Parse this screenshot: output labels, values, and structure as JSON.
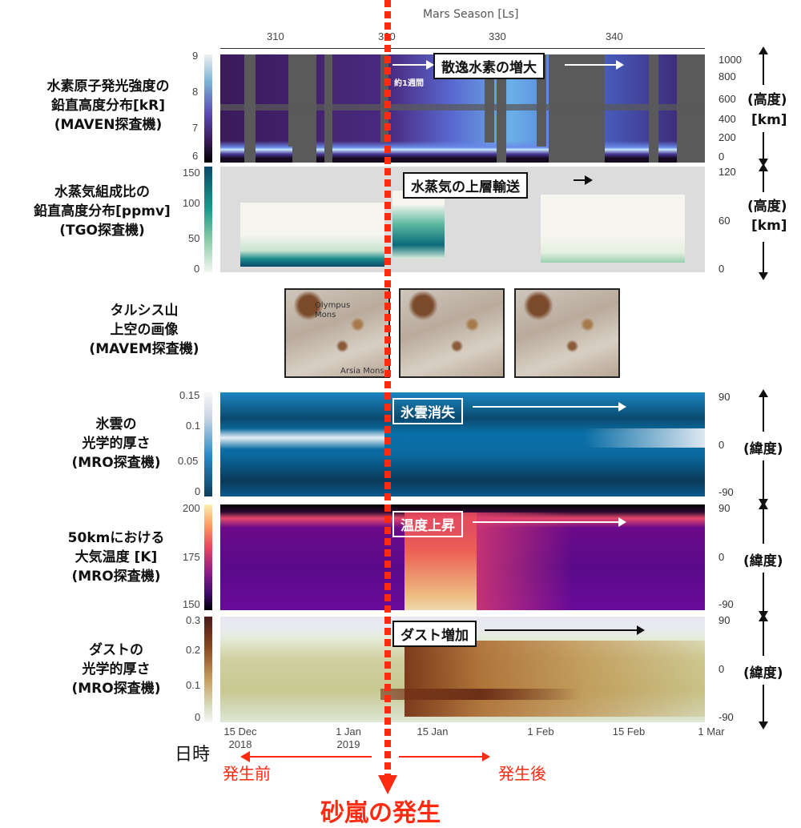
{
  "top_axis": {
    "title": "Mars Season [Ls]",
    "ticks": [
      "310",
      "320",
      "330",
      "340"
    ]
  },
  "panels": {
    "maven": {
      "label_lines": [
        "水素原子発光強度の",
        "鉛直高度分布[kR]",
        "(MAVEN探査機)"
      ],
      "colorbar": [
        "9",
        "8",
        "7",
        "6"
      ],
      "right_ticks": [
        "1000",
        "800",
        "600",
        "400",
        "200",
        "0"
      ],
      "unit_lines": [
        "(高度)",
        "[km]"
      ],
      "annotation": "散逸水素の増大",
      "sub_annotation": "約1週間"
    },
    "tgo": {
      "label_lines": [
        "水蒸気組成比の",
        "鉛直高度分布[ppmv]",
        "(TGO探査機)"
      ],
      "colorbar": [
        "150",
        "100",
        "50",
        "0"
      ],
      "right_ticks": [
        "120",
        "60",
        "0"
      ],
      "unit_lines": [
        "(高度)",
        "[km]"
      ],
      "annotation": "水蒸気の上層輸送"
    },
    "images": {
      "label_lines": [
        "タルシス山",
        "上空の画像",
        "(MAVEM探査機)"
      ],
      "photo_labels": [
        "Olympus Mons",
        "Arsia Mons"
      ]
    },
    "ice": {
      "label_lines": [
        "氷雲の",
        "光学的厚さ",
        "(MRO探査機)"
      ],
      "colorbar": [
        "0.15",
        "0.1",
        "0.05",
        "0"
      ],
      "right_ticks": [
        "90",
        "0",
        "-90"
      ],
      "unit": "(緯度)",
      "annotation": "氷雲消失"
    },
    "temp": {
      "label_lines": [
        "50kmにおける",
        "大気温度 [K]",
        "(MRO探査機)"
      ],
      "colorbar": [
        "200",
        "175",
        "150"
      ],
      "right_ticks": [
        "90",
        "0",
        "-90"
      ],
      "unit": "(緯度)",
      "annotation": "温度上昇"
    },
    "dust": {
      "label_lines": [
        "ダストの",
        "光学的厚さ",
        "(MRO探査機)"
      ],
      "colorbar": [
        "0.3",
        "0.2",
        "0.1",
        "0"
      ],
      "right_ticks": [
        "90",
        "0",
        "-90"
      ],
      "unit": "(緯度)",
      "annotation": "ダスト増加"
    }
  },
  "bottom_axis": {
    "label": "日時",
    "ticks": [
      [
        "15 Dec",
        "2018"
      ],
      [
        "1 Jan",
        "2019"
      ],
      [
        "15 Jan",
        ""
      ],
      [
        "1 Feb",
        ""
      ],
      [
        "15 Feb",
        ""
      ],
      [
        "1 Mar",
        ""
      ]
    ]
  },
  "event": {
    "before": "発生前",
    "after": "発生後",
    "title": "砂嵐の発生"
  },
  "colors": {
    "event_red": "#ff2a10",
    "ice_cmap": [
      "#0a3d5e",
      "#0a7bb8",
      "#ffffff"
    ],
    "temp_cmap": [
      "#000004",
      "#5c0a8a",
      "#e8485f",
      "#fdf0b0"
    ],
    "dust_cmap": [
      "#eef1ee",
      "#c8c58f",
      "#6b2e1e"
    ],
    "tgo_cmap": [
      "#f2f5ec",
      "#2a9a8a",
      "#0a4a6a"
    ],
    "maven_cmap": [
      "#100818",
      "#5a3aa8",
      "#e8f4f8"
    ]
  },
  "chart_data": [
    {
      "type": "heatmap",
      "title": "水素原子発光強度の鉛直高度分布[kR]",
      "xlabel": "Mars Season [Ls]",
      "ylabel": "(高度) [km]",
      "ylim": [
        0,
        1000
      ],
      "colorbar_range": [
        6,
        9
      ]
    },
    {
      "type": "heatmap",
      "title": "水蒸気組成比の鉛直高度分布[ppmv]",
      "ylabel": "(高度) [km]",
      "ylim": [
        0,
        120
      ],
      "colorbar_range": [
        0,
        150
      ]
    },
    {
      "type": "heatmap",
      "title": "氷雲の光学的厚さ",
      "ylabel": "(緯度)",
      "ylim": [
        -90,
        90
      ],
      "colorbar_range": [
        0,
        0.15
      ]
    },
    {
      "type": "heatmap",
      "title": "50kmにおける大気温度 [K]",
      "ylabel": "(緯度)",
      "ylim": [
        -90,
        90
      ],
      "colorbar_range": [
        150,
        200
      ]
    },
    {
      "type": "heatmap",
      "title": "ダストの光学的厚さ",
      "xlabel": "日時",
      "ylabel": "(緯度)",
      "ylim": [
        -90,
        90
      ],
      "colorbar_range": [
        0,
        0.3
      ],
      "x_range": [
        "2018-12-15",
        "2019-03-01"
      ]
    }
  ]
}
